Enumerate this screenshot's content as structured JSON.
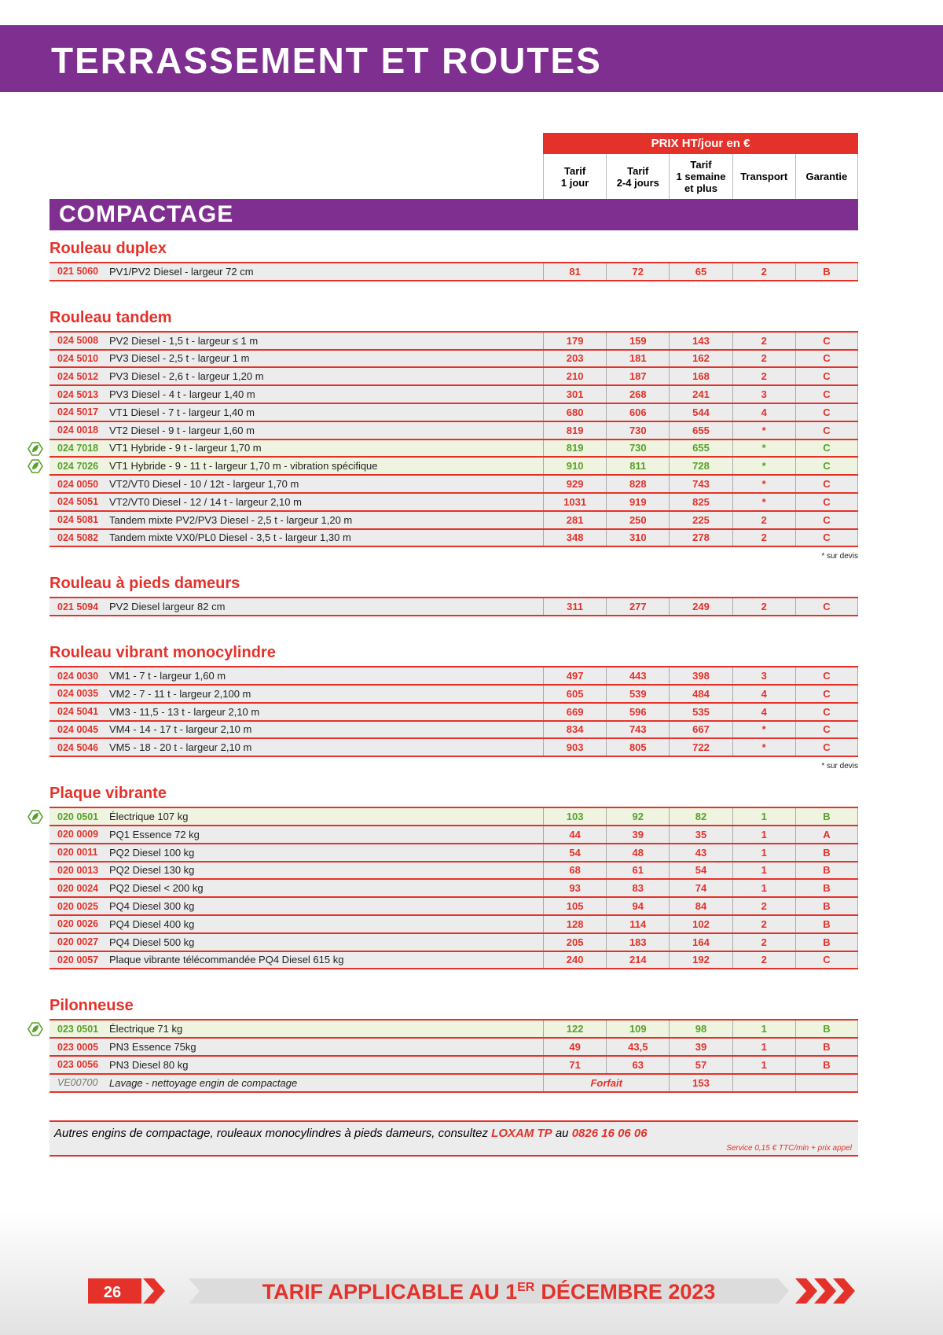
{
  "header": {
    "title": "TERRASSEMENT ET ROUTES"
  },
  "table": {
    "price_header": "PRIX HT/jour en €",
    "columns": [
      [
        "Tarif",
        "1 jour"
      ],
      [
        "Tarif",
        "2-4 jours"
      ],
      [
        "Tarif",
        "1 semaine",
        "et plus"
      ],
      [
        "Transport"
      ],
      [
        "Garantie"
      ]
    ],
    "section": "COMPACTAGE",
    "groups": [
      {
        "title": "Rouleau duplex",
        "rows": [
          {
            "code": "021 5060",
            "desc": "PV1/PV2 Diesel - largeur 72 cm",
            "values": [
              81,
              72,
              65,
              2,
              "B"
            ]
          }
        ]
      },
      {
        "title": "Rouleau tandem",
        "note": "* sur devis",
        "rows": [
          {
            "code": "024 5008",
            "desc": "PV2 Diesel - 1,5 t - largeur ≤ 1 m",
            "values": [
              179,
              159,
              143,
              2,
              "C"
            ]
          },
          {
            "code": "024 5010",
            "desc": "PV3 Diesel - 2,5 t - largeur 1 m",
            "values": [
              203,
              181,
              162,
              2,
              "C"
            ]
          },
          {
            "code": "024 5012",
            "desc": "PV3 Diesel - 2,6 t - largeur 1,20 m",
            "values": [
              210,
              187,
              168,
              2,
              "C"
            ]
          },
          {
            "code": "024 5013",
            "desc": "PV3 Diesel - 4 t - largeur 1,40 m",
            "values": [
              301,
              268,
              241,
              3,
              "C"
            ]
          },
          {
            "code": "024 5017",
            "desc": "VT1 Diesel - 7 t - largeur 1,40 m",
            "values": [
              680,
              606,
              544,
              4,
              "C"
            ]
          },
          {
            "code": "024 0018",
            "desc": "VT2 Diesel - 9 t - largeur 1,60 m",
            "values": [
              819,
              730,
              655,
              "*",
              "C"
            ]
          },
          {
            "code": "024 7018",
            "desc": "VT1 Hybride - 9 t - largeur 1,70 m",
            "values": [
              819,
              730,
              655,
              "*",
              "C"
            ],
            "eco": true
          },
          {
            "code": "024 7026",
            "desc": "VT1 Hybride - 9 - 11 t - largeur 1,70 m - vibration spécifique",
            "values": [
              910,
              811,
              728,
              "*",
              "C"
            ],
            "eco": true
          },
          {
            "code": "024 0050",
            "desc": "VT2/VT0 Diesel - 10 / 12t - largeur 1,70 m",
            "values": [
              929,
              828,
              743,
              "*",
              "C"
            ]
          },
          {
            "code": "024 5051",
            "desc": "VT2/VT0 Diesel - 12 / 14 t - largeur 2,10 m",
            "values": [
              1031,
              919,
              825,
              "*",
              "C"
            ]
          },
          {
            "code": "024 5081",
            "desc": "Tandem mixte PV2/PV3 Diesel - 2,5 t - largeur 1,20 m",
            "values": [
              281,
              250,
              225,
              2,
              "C"
            ]
          },
          {
            "code": "024 5082",
            "desc": "Tandem mixte VX0/PL0 Diesel - 3,5 t - largeur 1,30 m",
            "values": [
              348,
              310,
              278,
              2,
              "C"
            ]
          }
        ]
      },
      {
        "title": "Rouleau à pieds dameurs",
        "rows": [
          {
            "code": "021 5094",
            "desc": "PV2 Diesel largeur 82 cm",
            "values": [
              311,
              277,
              249,
              2,
              "C"
            ]
          }
        ]
      },
      {
        "title": "Rouleau vibrant monocylindre",
        "note": "* sur devis",
        "rows": [
          {
            "code": "024 0030",
            "desc": "VM1 - 7 t - largeur 1,60 m",
            "values": [
              497,
              443,
              398,
              3,
              "C"
            ]
          },
          {
            "code": "024 0035",
            "desc": "VM2 - 7 - 11 t - largeur 2,100 m",
            "values": [
              605,
              539,
              484,
              4,
              "C"
            ]
          },
          {
            "code": "024 5041",
            "desc": "VM3 - 11,5 - 13 t - largeur 2,10 m",
            "values": [
              669,
              596,
              535,
              4,
              "C"
            ]
          },
          {
            "code": "024 0045",
            "desc": "VM4 - 14 - 17 t - largeur 2,10 m",
            "values": [
              834,
              743,
              667,
              "*",
              "C"
            ]
          },
          {
            "code": "024 5046",
            "desc": "VM5 - 18 - 20 t - largeur 2,10 m",
            "values": [
              903,
              805,
              722,
              "*",
              "C"
            ]
          }
        ]
      },
      {
        "title": "Plaque vibrante",
        "rows": [
          {
            "code": "020 0501",
            "desc": "Électrique 107 kg",
            "values": [
              103,
              92,
              82,
              1,
              "B"
            ],
            "eco": true
          },
          {
            "code": "020 0009",
            "desc": "PQ1 Essence 72 kg",
            "values": [
              44,
              39,
              35,
              1,
              "A"
            ]
          },
          {
            "code": "020 0011",
            "desc": "PQ2 Diesel 100 kg",
            "values": [
              54,
              48,
              43,
              1,
              "B"
            ]
          },
          {
            "code": "020 0013",
            "desc": "PQ2 Diesel 130 kg",
            "values": [
              68,
              61,
              54,
              1,
              "B"
            ]
          },
          {
            "code": "020 0024",
            "desc": "PQ2 Diesel < 200 kg",
            "values": [
              93,
              83,
              74,
              1,
              "B"
            ]
          },
          {
            "code": "020 0025",
            "desc": "PQ4 Diesel 300 kg",
            "values": [
              105,
              94,
              84,
              2,
              "B"
            ]
          },
          {
            "code": "020 0026",
            "desc": "PQ4 Diesel 400 kg",
            "values": [
              128,
              114,
              102,
              2,
              "B"
            ]
          },
          {
            "code": "020 0027",
            "desc": "PQ4 Diesel 500 kg",
            "values": [
              205,
              183,
              164,
              2,
              "B"
            ]
          },
          {
            "code": "020 0057",
            "desc": "Plaque vibrante télécommandée PQ4 Diesel 615 kg",
            "values": [
              240,
              214,
              192,
              2,
              "C"
            ]
          }
        ]
      },
      {
        "title": "Pilonneuse",
        "rows": [
          {
            "code": "023 0501",
            "desc": "Électrique 71 kg",
            "values": [
              122,
              109,
              98,
              1,
              "B"
            ],
            "eco": true
          },
          {
            "code": "023 0005",
            "desc": "PN3 Essence 75kg",
            "values": [
              49,
              "43,5",
              39,
              1,
              "B"
            ]
          },
          {
            "code": "023 0056",
            "desc": "PN3 Diesel 80 kg",
            "values": [
              71,
              63,
              57,
              1,
              "B"
            ]
          },
          {
            "code": "VE00700",
            "desc": "Lavage - nettoyage engin de compactage",
            "forfait": "Forfait",
            "values": [
              153
            ]
          }
        ]
      }
    ]
  },
  "contact": {
    "text": "Autres engins de compactage, rouleaux monocylindres à pieds dameurs, consultez",
    "brand": "LOXAM TP",
    "joiner": "au",
    "phone": "0826 16 06 06",
    "service": "Service 0,15 € TTC/min + prix appel"
  },
  "footer": {
    "page": "26",
    "text": "TARIF APPLICABLE AU 1",
    "sup": "ER",
    "text2": "DÉCEMBRE 2023"
  }
}
